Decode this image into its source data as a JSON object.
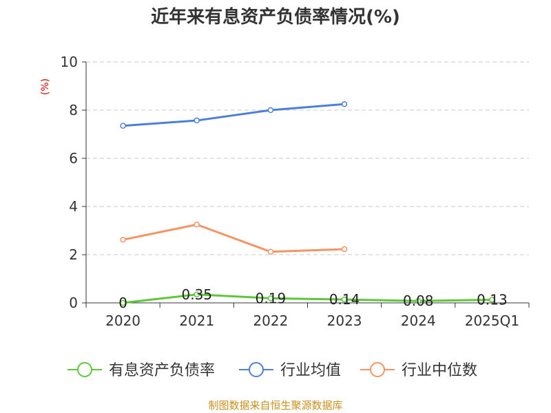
{
  "chart_data": {
    "type": "line",
    "title": "近年来有息资产负债率情况(%)",
    "ylabel": "(%)",
    "categories": [
      "2020",
      "2021",
      "2022",
      "2023",
      "2024",
      "2025Q1"
    ],
    "yticks": [
      "0",
      "2",
      "4",
      "6",
      "8",
      "10"
    ],
    "ylim": [
      0,
      10
    ],
    "grid": "horizontal-dashed",
    "legend_position": "bottom",
    "series": [
      {
        "name": "有息资产负债率",
        "color": "#5ec739",
        "values": [
          0,
          0.35,
          0.19,
          0.14,
          0.08,
          0.13
        ],
        "labels": [
          "0",
          "0.35",
          "0.19",
          "0.14",
          "0.08",
          "0.13"
        ]
      },
      {
        "name": "行业均值",
        "color": "#4d7fd8",
        "values": [
          7.35,
          7.57,
          8.0,
          8.25,
          null,
          null
        ]
      },
      {
        "name": "行业中位数",
        "color": "#f59364",
        "values": [
          2.62,
          3.25,
          2.12,
          2.23,
          null,
          null
        ]
      }
    ]
  },
  "source": "制图数据来自恒生聚源数据库"
}
